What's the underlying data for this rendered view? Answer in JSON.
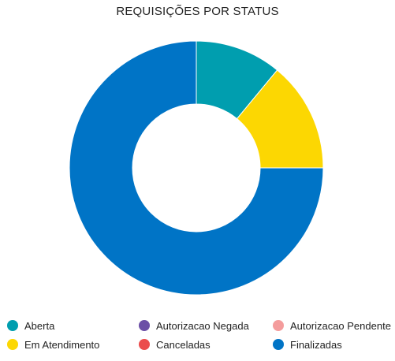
{
  "chart_data": {
    "type": "pie",
    "variant": "donut",
    "title": "REQUISIÇÕES POR STATUS",
    "legend_position": "bottom",
    "slices": [
      {
        "label": "Aberta",
        "value": 11,
        "color": "#009eaf"
      },
      {
        "label": "Em Atendimento",
        "value": 14,
        "color": "#fcd702"
      },
      {
        "label": "Finalizadas",
        "value": 75,
        "color": "#0074c6"
      },
      {
        "label": "Autorizacao Negada",
        "value": 0,
        "color": "#6b4fa6"
      },
      {
        "label": "Canceladas",
        "value": 0,
        "color": "#eb4c4c"
      },
      {
        "label": "Autorizacao Pendente",
        "value": 0,
        "color": "#f49c9c"
      }
    ],
    "legend": [
      {
        "label": "Aberta",
        "color": "#009eaf"
      },
      {
        "label": "Autorizacao Negada",
        "color": "#6b4fa6"
      },
      {
        "label": "Autorizacao Pendente",
        "color": "#f49c9c"
      },
      {
        "label": "Em Atendimento",
        "color": "#fcd702"
      },
      {
        "label": "Canceladas",
        "color": "#eb4c4c"
      },
      {
        "label": "Finalizadas",
        "color": "#0074c6"
      }
    ]
  }
}
